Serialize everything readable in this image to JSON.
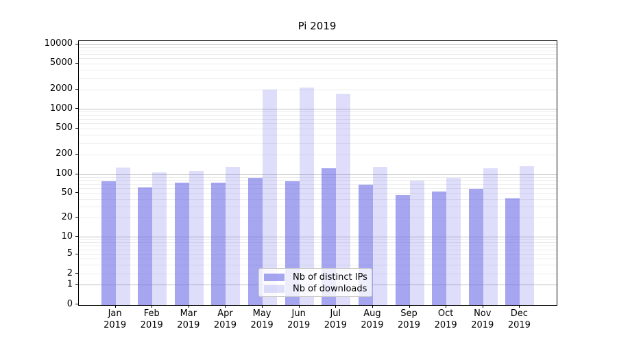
{
  "figure": {
    "title": "Pi 2019"
  },
  "axes": {
    "y_tick_labels": [
      "10000",
      "5000",
      "2000",
      "1000",
      "500",
      "200",
      "100",
      "50",
      "20",
      "10",
      "5",
      "2",
      "1",
      "0"
    ],
    "x_months": [
      "Jan",
      "Feb",
      "Mar",
      "Apr",
      "May",
      "Jun",
      "Jul",
      "Aug",
      "Sep",
      "Oct",
      "Nov",
      "Dec"
    ],
    "x_year": "2019"
  },
  "legend": {
    "items": [
      {
        "label": "Nb of distinct IPs",
        "swatch": "dark"
      },
      {
        "label": "Nb of downloads",
        "swatch": "light"
      }
    ]
  },
  "colors": {
    "bar_dark": "rgba(105,105,230,0.60)",
    "bar_light": "rgba(105,105,230,0.22)",
    "grid_major": "#bdbdbd",
    "grid_minor": "#ececec",
    "spine": "#000000"
  },
  "chart_data": {
    "type": "bar",
    "title": "Pi 2019",
    "categories": [
      "Jan 2019",
      "Feb 2019",
      "Mar 2019",
      "Apr 2019",
      "May 2019",
      "Jun 2019",
      "Jul 2019",
      "Aug 2019",
      "Sep 2019",
      "Oct 2019",
      "Nov 2019",
      "Dec 2019"
    ],
    "series": [
      {
        "name": "Nb of distinct IPs",
        "values": [
          78,
          62,
          74,
          74,
          89,
          77,
          124,
          68,
          47,
          53,
          59,
          41
        ]
      },
      {
        "name": "Nb of downloads",
        "values": [
          128,
          108,
          112,
          131,
          2000,
          2160,
          1740,
          132,
          79,
          88,
          124,
          133
        ]
      }
    ],
    "xlabel": "",
    "ylabel": "",
    "yscale": "symlog (linear 0-1, logarithmic above 1)",
    "y_ticks": [
      0,
      1,
      2,
      5,
      10,
      20,
      50,
      100,
      200,
      500,
      1000,
      2000,
      5000,
      10000
    ],
    "ylim": [
      0,
      11500
    ],
    "grid": "horizontal; major gridlines at powers of 10, minor gridlines at 2-9 per decade",
    "legend_position": "lower center inside axes"
  }
}
